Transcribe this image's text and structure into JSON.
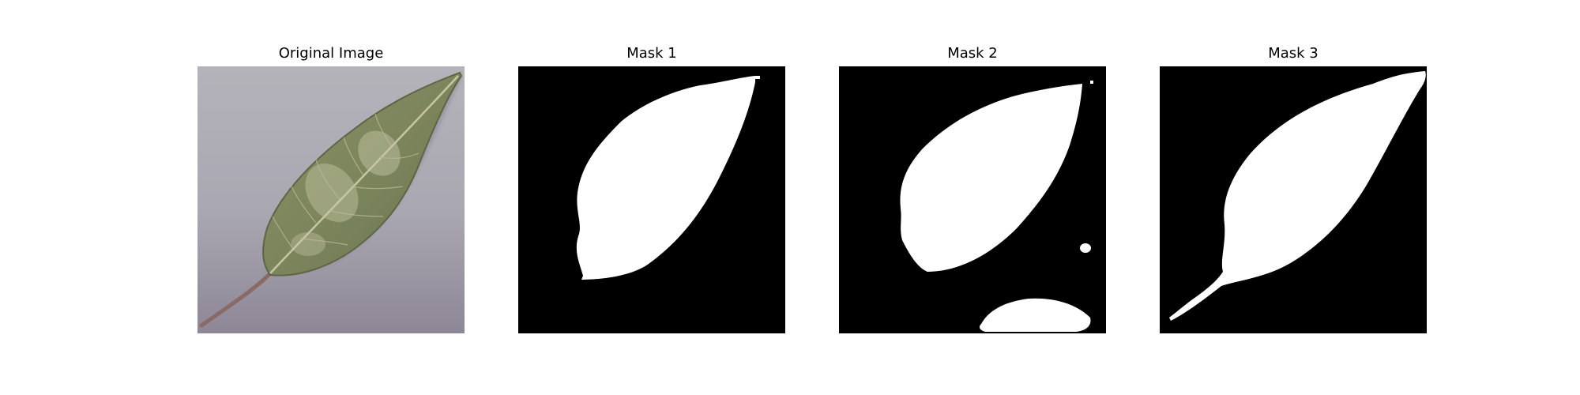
{
  "figure": {
    "panels": [
      {
        "title": "Original Image",
        "kind": "photo"
      },
      {
        "title": "Mask 1",
        "kind": "mask"
      },
      {
        "title": "Mask 2",
        "kind": "mask"
      },
      {
        "title": "Mask 3",
        "kind": "mask"
      }
    ],
    "colors": {
      "background": "#ffffff",
      "mask_background": "#000000",
      "mask_foreground": "#ffffff",
      "leaf_green": "#7d8660",
      "paper_gray": "#aaa8b2"
    }
  }
}
